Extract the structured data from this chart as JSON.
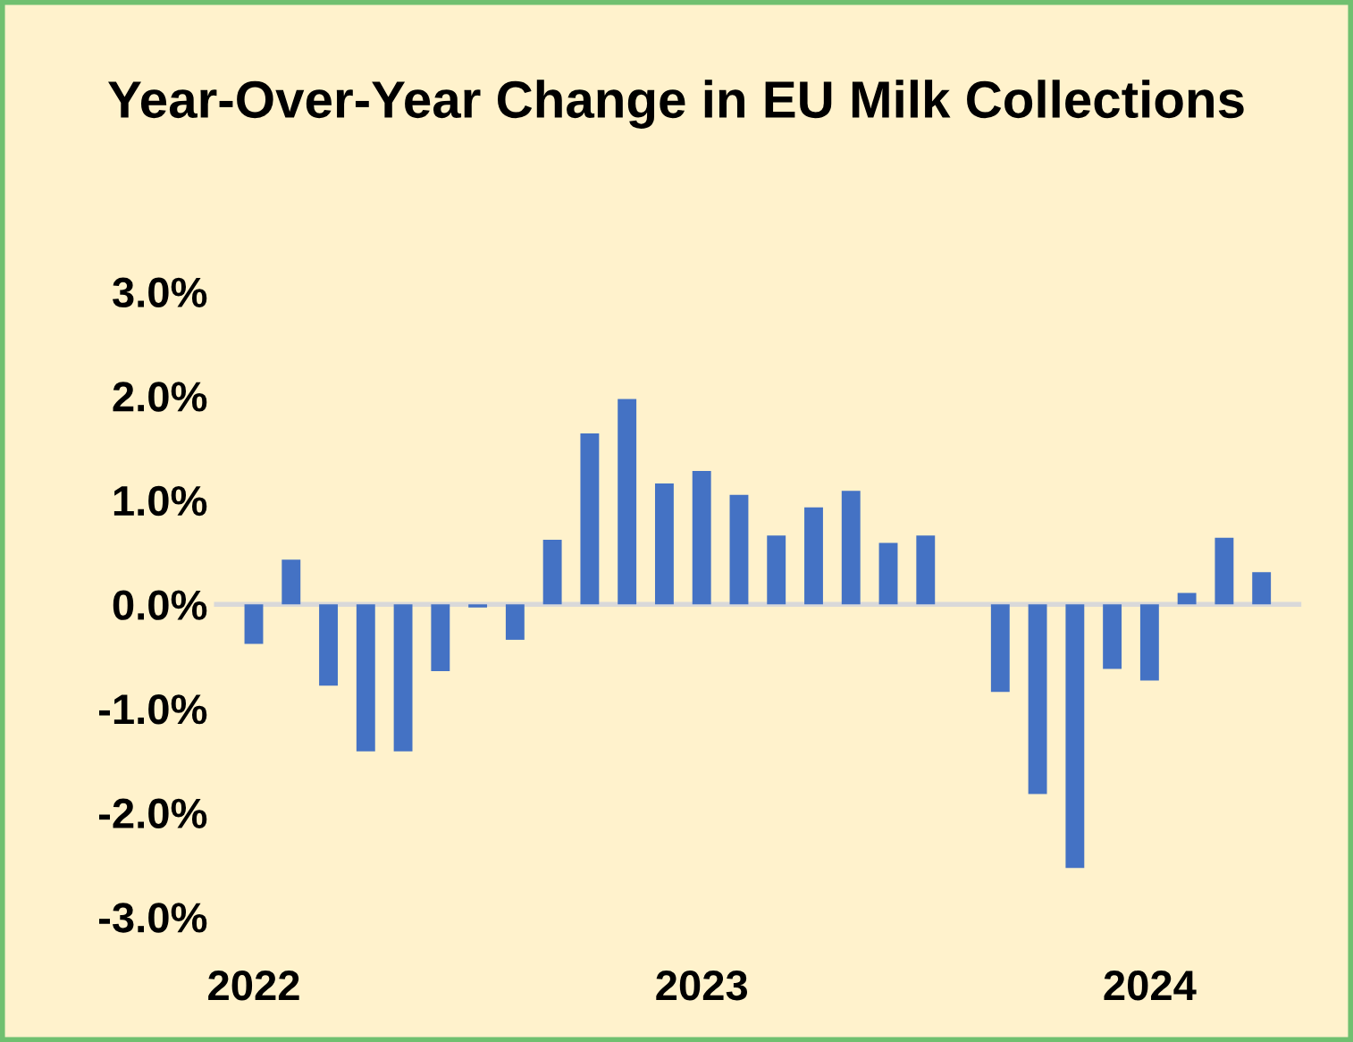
{
  "chart_data": {
    "type": "bar",
    "title": "Year-Over-Year Change in EU Milk Collections",
    "categories": [
      "2022",
      null,
      null,
      null,
      null,
      null,
      null,
      null,
      null,
      null,
      null,
      null,
      "2023",
      null,
      null,
      null,
      null,
      null,
      null,
      null,
      null,
      null,
      null,
      null,
      "2024",
      null,
      null,
      null
    ],
    "series": [
      {
        "color": "#4472c4",
        "values": [
          -0.38,
          0.43,
          -0.78,
          -1.41,
          -1.41,
          -0.64,
          -0.03,
          -0.34,
          0.62,
          1.64,
          1.97,
          1.16,
          1.28,
          1.05,
          0.66,
          0.93,
          1.09,
          0.59,
          0.66,
          null,
          -0.84,
          -1.82,
          -2.53,
          -0.62,
          -0.73,
          0.11,
          0.64,
          0.31
        ]
      }
    ],
    "ylim": [
      -3.0,
      3.0
    ],
    "yticks": [
      {
        "value": -3.0,
        "label": "-3.0%"
      },
      {
        "value": -2.0,
        "label": "-2.0%"
      },
      {
        "value": -1.0,
        "label": "-1.0%"
      },
      {
        "value": 0.0,
        "label": "0.0%"
      },
      {
        "value": 1.0,
        "label": "1.0%"
      },
      {
        "value": 2.0,
        "label": "2.0%"
      },
      {
        "value": 3.0,
        "label": "3.0%"
      }
    ],
    "legend": false
  }
}
